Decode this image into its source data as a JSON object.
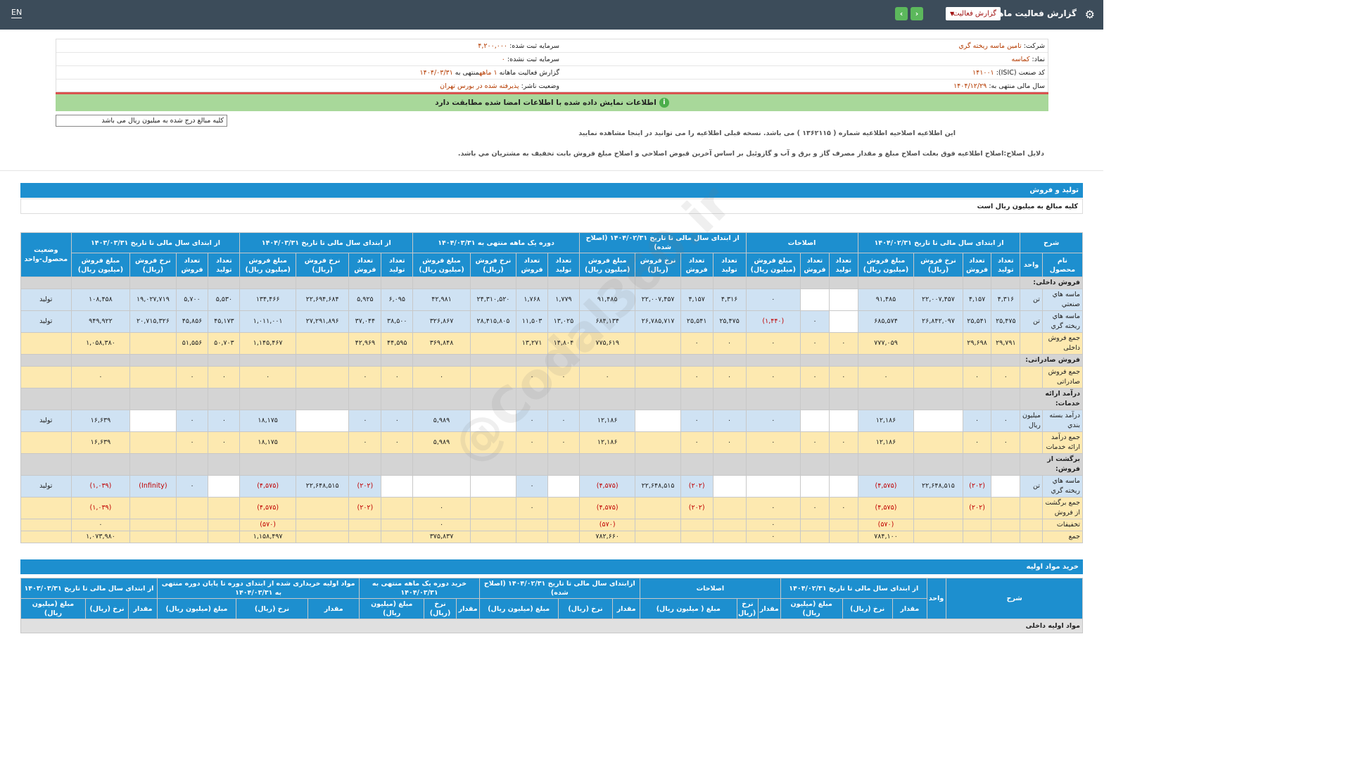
{
  "topbar": {
    "title": "گزارش فعالیت ماهانه",
    "select": "گزارش فعالیت",
    "lang": "EN",
    "prev": "›",
    "next": "‹"
  },
  "info": {
    "company_label": "شرکت:",
    "company": "تامين ماسه ريخته گري",
    "symbol_label": "نماد:",
    "symbol": "کماسه",
    "isic_label": "کد صنعت (ISIC):",
    "isic": "۱۴۱۰۰۱",
    "fy_label": "سال مالی منتهی به:",
    "fy": "۱۴۰۴/۱۲/۲۹",
    "reg_cap_label": "سرمایه ثبت شده:",
    "reg_cap": "۴,۲۰۰,۰۰۰",
    "unreg_cap_label": "سرمایه ثبت نشده:",
    "unreg_cap": "۰",
    "report_label": "گزارش فعالیت ماهانه",
    "report_val": "۱ ماهه",
    "report_end": "منتهی به",
    "report_date": "۱۴۰۴/۰۳/۳۱",
    "status_label": "وضعیت ناشر:",
    "status": "پذيرفته شده در بورس تهران"
  },
  "greenbar": "اطلاعات نمایش داده شده با اطلاعات امضا شده مطابقت دارد",
  "unit_note": "کلیه مبالغ درج شده به میلیون ریال می باشد",
  "note1": "این اطلاعیه اصلاحیه اطلاعیه شماره ( ۱۳۶۲۱۱۵ ) می باشد. نسخه قبلی اطلاعیه را می توانید در اینجا مشاهده نمایید",
  "note2": "دلایل اصلاح:اصلاح اطلاعیه فوق بعلت اصلاح مبلغ و مقدار مصرف گاز و برق و آب و گازوئیل بر اساس آخرین قبوض اصلاحي و اصلاح مبلغ فروش بابت تخفیف به مشتریان مي باشد.",
  "section1": {
    "title": "تولید و فروش",
    "subtitle": "کلیه مبالغ به میلیون ریال است"
  },
  "t1": {
    "groups": [
      "شرح",
      "از ابتدای سال مالی تا تاریخ ۱۴۰۴/۰۲/۳۱",
      "اصلاحات",
      "از ابتدای سال مالی تا تاریخ ۱۴۰۴/۰۲/۳۱ (اصلاح شده)",
      "دوره یک ماهه منتهی به ۱۴۰۴/۰۳/۳۱",
      "از ابتدای سال مالی تا تاریخ ۱۴۰۴/۰۳/۳۱",
      "از ابتدای سال مالی تا تاریخ ۱۴۰۳/۰۳/۳۱",
      "وضعیت محصول-واحد"
    ],
    "sub_a": [
      "نام محصول",
      "واحد"
    ],
    "sub_full": [
      "تعداد تولید",
      "تعداد فروش",
      "نرخ فروش (ریال)",
      "مبلغ فروش (میلیون ریال)"
    ],
    "sub_adj": [
      "تعداد تولید",
      "تعداد فروش",
      "مبلغ فروش (میلیون ریال)"
    ]
  },
  "rows": [
    {
      "t": "grey",
      "name": "فروش داخلی:"
    },
    {
      "t": "blue",
      "name": "ماسه هاي صنعتي",
      "unit": "تن",
      "c": [
        "۴,۳۱۶",
        "۴,۱۵۷",
        "۲۲,۰۰۷,۴۵۷",
        "۹۱,۴۸۵",
        "",
        "",
        "۰",
        "۴,۳۱۶",
        "۴,۱۵۷",
        "۲۲,۰۰۷,۴۵۷",
        "۹۱,۴۸۵",
        "۱,۷۷۹",
        "۱,۷۶۸",
        "۲۴,۳۱۰,۵۲۰",
        "۴۲,۹۸۱",
        "۶,۰۹۵",
        "۵,۹۲۵",
        "۲۲,۶۹۴,۶۸۴",
        "۱۳۴,۴۶۶",
        "۵,۵۳۰",
        "۵,۷۰۰",
        "۱۹,۰۲۷,۷۱۹",
        "۱۰۸,۴۵۸"
      ],
      "st": "تولید"
    },
    {
      "t": "blue",
      "name": "ماسه هاي ريخته گري",
      "unit": "تن",
      "c": [
        "۲۵,۴۷۵",
        "۲۵,۵۴۱",
        "۲۶,۸۴۲,۰۹۷",
        "۶۸۵,۵۷۴",
        "",
        "۰",
        "(۱,۴۴۰)",
        "۲۵,۴۷۵",
        "۲۵,۵۴۱",
        "۲۶,۷۸۵,۷۱۷",
        "۶۸۴,۱۳۴",
        "۱۳,۰۲۵",
        "۱۱,۵۰۳",
        "۲۸,۴۱۵,۸۰۵",
        "۳۲۶,۸۶۷",
        "۳۸,۵۰۰",
        "۳۷,۰۴۴",
        "۲۷,۲۹۱,۸۹۶",
        "۱,۰۱۱,۰۰۱",
        "۴۵,۱۷۳",
        "۴۵,۸۵۶",
        "۲۰,۷۱۵,۳۲۶",
        "۹۴۹,۹۲۲"
      ],
      "st": "تولید"
    },
    {
      "t": "yel",
      "name": "جمع فروش داخلی",
      "unit": "",
      "c": [
        "۲۹,۷۹۱",
        "۲۹,۶۹۸",
        "",
        "۷۷۷,۰۵۹",
        "۰",
        "۰",
        "۰",
        "۰",
        "۰",
        "",
        "۷۷۵,۶۱۹",
        "۱۴,۸۰۴",
        "۱۳,۲۷۱",
        "",
        "۳۶۹,۸۴۸",
        "۴۴,۵۹۵",
        "۴۲,۹۶۹",
        "",
        "۱,۱۴۵,۴۶۷",
        "۵۰,۷۰۳",
        "۵۱,۵۵۶",
        "",
        "۱,۰۵۸,۳۸۰"
      ],
      "st": ""
    },
    {
      "t": "grey",
      "name": "فروش صادراتی:"
    },
    {
      "t": "yel",
      "name": "جمع فروش صادراتی",
      "unit": "",
      "c": [
        "۰",
        "۰",
        "",
        "۰",
        "۰",
        "۰",
        "۰",
        "۰",
        "۰",
        "",
        "۰",
        "۰",
        "۰",
        "",
        "۰",
        "۰",
        "۰",
        "",
        "۰",
        "۰",
        "۰",
        "",
        "۰"
      ],
      "st": ""
    },
    {
      "t": "grey",
      "name": "درآمد ارائه خدمات:"
    },
    {
      "t": "blue",
      "name": "درآمد بسته بندي",
      "unit": "میلیون ریال",
      "c": [
        "۰",
        "۰",
        "",
        "۱۲,۱۸۶",
        "",
        "",
        "۰",
        "۰",
        "۰",
        "",
        "۱۲,۱۸۶",
        "۰",
        "۰",
        "",
        "۵,۹۸۹",
        "۰",
        "۰",
        "",
        "۱۸,۱۷۵",
        "۰",
        "۰",
        "",
        "۱۶,۶۳۹"
      ],
      "st": "تولید"
    },
    {
      "t": "yel",
      "name": "جمع درآمد ارائه خدمات",
      "unit": "",
      "c": [
        "۰",
        "۰",
        "",
        "۱۲,۱۸۶",
        "۰",
        "۰",
        "۰",
        "۰",
        "۰",
        "",
        "۱۲,۱۸۶",
        "۰",
        "۰",
        "",
        "۵,۹۸۹",
        "۰",
        "۰",
        "",
        "۱۸,۱۷۵",
        "۰",
        "۰",
        "",
        "۱۶,۶۳۹"
      ],
      "st": ""
    },
    {
      "t": "grey",
      "name": "برگشت از فروش:"
    },
    {
      "t": "blue",
      "name": "ماسه هاي ريخته گري",
      "unit": "تن",
      "c": [
        "",
        "(۲۰۲)",
        "۲۲,۶۴۸,۵۱۵",
        "(۴,۵۷۵)",
        "",
        "",
        "",
        "",
        "(۲۰۲)",
        "۲۲,۶۴۸,۵۱۵",
        "(۴,۵۷۵)",
        "",
        "۰",
        "",
        "",
        "",
        "(۲۰۲)",
        "۲۲,۶۴۸,۵۱۵",
        "(۴,۵۷۵)",
        "",
        "۰",
        "(Infinity)",
        "(۱,۰۳۹)"
      ],
      "st": "تولید"
    },
    {
      "t": "yel",
      "name": "جمع برگشت از فروش",
      "unit": "",
      "c": [
        "",
        "(۲۰۲)",
        "",
        "(۴,۵۷۵)",
        "۰",
        "۰",
        "۰",
        "",
        "(۲۰۲)",
        "",
        "(۴,۵۷۵)",
        "",
        "۰",
        "",
        "۰",
        "",
        "(۲۰۲)",
        "",
        "(۴,۵۷۵)",
        "",
        "",
        "",
        "(۱,۰۳۹)"
      ],
      "st": ""
    },
    {
      "t": "yel",
      "name": "تخفیفات",
      "unit": "",
      "c": [
        "",
        "",
        "",
        "(۵۷۰)",
        "",
        "",
        "۰",
        "",
        "",
        "",
        "(۵۷۰)",
        "",
        "",
        "",
        "۰",
        "",
        "",
        "",
        "(۵۷۰)",
        "",
        "",
        "",
        "۰"
      ],
      "st": ""
    },
    {
      "t": "yel",
      "name": "جمع",
      "unit": "",
      "c": [
        "",
        "",
        "",
        "۷۸۴,۱۰۰",
        "",
        "",
        "۰",
        "",
        "",
        "",
        "۷۸۲,۶۶۰",
        "",
        "",
        "",
        "۳۷۵,۸۳۷",
        "",
        "",
        "",
        "۱,۱۵۸,۴۹۷",
        "",
        "",
        "",
        "۱,۰۷۳,۹۸۰"
      ],
      "st": ""
    }
  ],
  "section2": {
    "title": "خرید مواد اولیه"
  },
  "t2": {
    "groups": [
      "شرح",
      "واحد",
      "از ابتدای سال مالی تا تاریخ ۱۴۰۴/۰۲/۳۱",
      "اصلاحات",
      "ازابتدای سال مالی تا تاریخ ۱۴۰۴/۰۲/۳۱ (اصلاح شده)",
      "خرید دوره یک ماهه منتهی به ۱۴۰۴/۰۳/۳۱",
      "مواد اولیه خریداری شده از ابتدای دوره تا پایان دوره منتهی به ۱۴۰۴/۰۳/۳۱",
      "از ابتدای سال مالی تا تاریخ ۱۴۰۳/۰۳/۳۱"
    ],
    "sub": [
      "مقدار",
      "نرخ (ریال)",
      "مبلغ (میلیون ریال)"
    ],
    "sub_adj": [
      "مقدار",
      "نرخ (ریال)",
      "مبلغ ( میلیون ریال)"
    ],
    "first_row": "مواد اولیه داخلی"
  },
  "watermark": "@Codal360.ir"
}
